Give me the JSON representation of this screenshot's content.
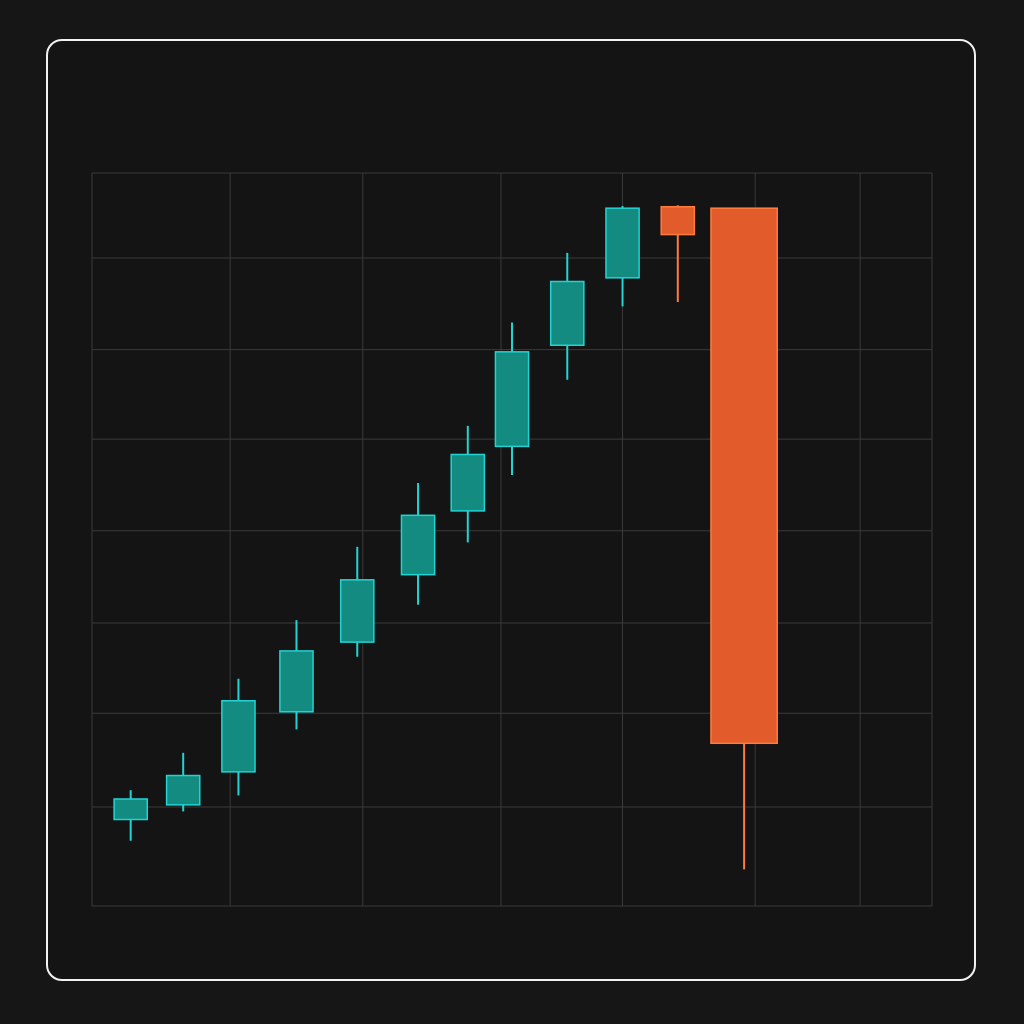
{
  "colors": {
    "background": "#161617",
    "panel": "#141414",
    "frame": "#f2f2f2",
    "grid": "#3a3a3a",
    "up_fill": "#138b80",
    "up_stroke": "#22d3d3",
    "down_fill": "#e25b2a",
    "down_stroke": "#ff7a3d"
  },
  "chart_data": {
    "type": "candlestick",
    "title": "",
    "xlabel": "",
    "ylabel": "",
    "axis_labels_shown": false,
    "grid": true,
    "ylim": [
      0,
      100
    ],
    "x_breaks": [
      0,
      2.5,
      4.9,
      7.4,
      9.6,
      12.0,
      13.9,
      15.2
    ],
    "y_grid": [
      0,
      13.5,
      26.3,
      38.6,
      51.2,
      63.7,
      75.9,
      88.4,
      100
    ],
    "candles": [
      {
        "x": 0.7,
        "open": 11.8,
        "close": 14.6,
        "high": 15.8,
        "low": 8.9
      },
      {
        "x": 1.65,
        "open": 13.8,
        "close": 17.8,
        "high": 20.9,
        "low": 12.9
      },
      {
        "x": 2.65,
        "open": 18.3,
        "close": 28.0,
        "high": 31.0,
        "low": 15.1
      },
      {
        "x": 3.7,
        "open": 26.5,
        "close": 34.8,
        "high": 39.0,
        "low": 24.1
      },
      {
        "x": 4.8,
        "open": 36.0,
        "close": 44.5,
        "high": 49.0,
        "low": 34.0
      },
      {
        "x": 5.9,
        "open": 45.2,
        "close": 53.3,
        "high": 57.7,
        "low": 41.1
      },
      {
        "x": 6.8,
        "open": 53.9,
        "close": 61.6,
        "high": 65.5,
        "low": 49.6
      },
      {
        "x": 7.6,
        "open": 62.7,
        "close": 75.6,
        "high": 79.6,
        "low": 58.8
      },
      {
        "x": 8.6,
        "open": 76.5,
        "close": 85.2,
        "high": 89.1,
        "low": 71.8
      },
      {
        "x": 9.6,
        "open": 85.7,
        "close": 95.2,
        "high": 95.5,
        "low": 81.8
      },
      {
        "x": 10.6,
        "open": 95.4,
        "close": 91.6,
        "high": 95.6,
        "low": 82.4
      },
      {
        "x": 11.8,
        "open": 95.2,
        "close": 22.2,
        "high": 95.2,
        "low": 5.0
      }
    ]
  }
}
